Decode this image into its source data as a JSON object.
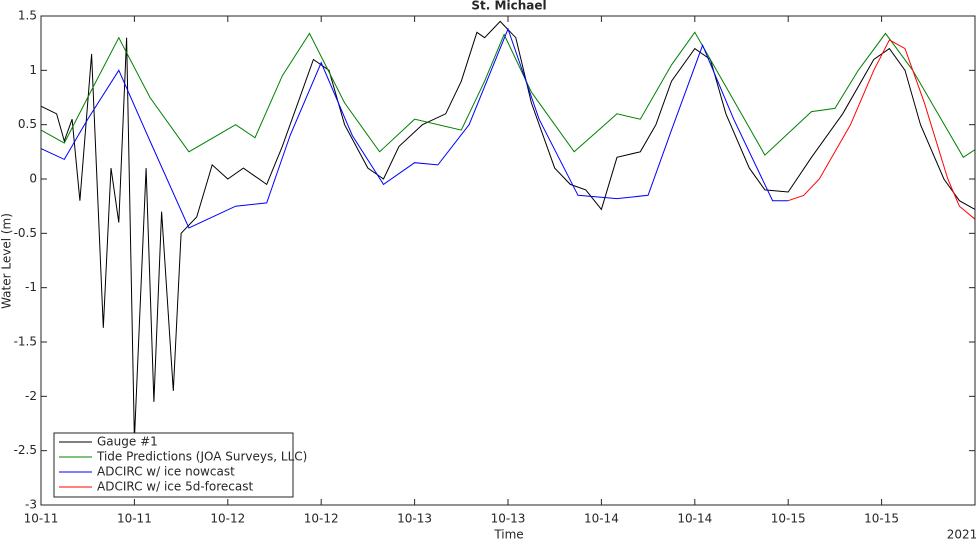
{
  "chart_data": {
    "type": "line",
    "title": "St. Michael",
    "x_label": "Time",
    "y_label": "Water Level (m)",
    "annotation": "2021",
    "xlim": [
      0,
      120
    ],
    "ylim": [
      -3,
      1.5
    ],
    "xticks": [
      {
        "value": 0,
        "label": "10-11"
      },
      {
        "value": 12,
        "label": "10-11"
      },
      {
        "value": 24,
        "label": "10-12"
      },
      {
        "value": 36,
        "label": "10-12"
      },
      {
        "value": 48,
        "label": "10-13"
      },
      {
        "value": 60,
        "label": "10-13"
      },
      {
        "value": 72,
        "label": "10-14"
      },
      {
        "value": 84,
        "label": "10-14"
      },
      {
        "value": 96,
        "label": "10-15"
      },
      {
        "value": 108,
        "label": "10-15"
      }
    ],
    "yticks": [
      1.5,
      1,
      0.5,
      0,
      -0.5,
      -1,
      -1.5,
      -2,
      -2.5,
      -3
    ],
    "grid": false,
    "legend": "lower-left",
    "series": [
      {
        "name": "Gauge #1",
        "color": "#000000",
        "x": [
          0,
          2,
          3,
          4,
          5,
          6.5,
          8,
          9,
          10,
          11,
          12,
          13.5,
          14.5,
          15.5,
          17,
          18,
          20,
          22,
          24,
          26,
          29,
          31,
          33,
          35,
          37,
          39,
          42,
          44,
          46,
          49,
          52,
          54,
          56,
          57,
          59,
          61,
          63,
          66,
          68,
          70,
          72,
          74,
          77,
          79,
          81,
          84,
          86,
          88,
          91,
          93,
          96,
          99,
          103,
          107,
          109,
          111,
          113,
          116,
          118,
          120
        ],
        "values": [
          0.67,
          0.6,
          0.35,
          0.55,
          -0.2,
          1.15,
          -1.37,
          0.1,
          -0.4,
          1.3,
          -2.4,
          0.1,
          -2.05,
          -0.3,
          -1.95,
          -0.5,
          -0.35,
          0.13,
          0.0,
          0.1,
          -0.05,
          0.3,
          0.7,
          1.1,
          1.0,
          0.5,
          0.1,
          0.0,
          0.3,
          0.5,
          0.6,
          0.9,
          1.35,
          1.3,
          1.45,
          1.3,
          0.7,
          0.1,
          -0.05,
          -0.1,
          -0.28,
          0.2,
          0.25,
          0.5,
          0.9,
          1.2,
          1.1,
          0.6,
          0.1,
          -0.1,
          -0.12,
          0.2,
          0.6,
          1.1,
          1.2,
          1.0,
          0.5,
          0.0,
          -0.2,
          -0.28
        ]
      },
      {
        "name": "Tide Predictions (JOA Surveys, LLC)",
        "color": "#008000",
        "x": [
          0,
          3,
          6,
          10,
          14,
          19,
          25,
          27.5,
          31,
          34.5,
          39,
          43.5,
          48,
          54,
          57,
          59.5,
          63,
          68.5,
          74,
          77,
          81,
          84,
          88,
          93,
          99,
          102,
          105,
          108.5,
          112,
          118.5,
          120
        ],
        "values": [
          0.45,
          0.33,
          0.75,
          1.3,
          0.75,
          0.25,
          0.5,
          0.38,
          0.95,
          1.34,
          0.7,
          0.25,
          0.55,
          0.45,
          0.9,
          1.33,
          0.8,
          0.25,
          0.6,
          0.55,
          1.05,
          1.35,
          0.85,
          0.22,
          0.62,
          0.65,
          1.0,
          1.34,
          1.0,
          0.2,
          0.27
        ]
      },
      {
        "name": "ADCIRC w/ ice nowcast",
        "color": "#0000ff",
        "x": [
          0,
          3,
          6,
          10,
          14,
          19,
          25,
          29,
          32,
          36,
          40,
          44,
          48,
          51,
          55,
          60,
          64,
          69,
          74,
          78,
          81,
          85,
          89,
          94,
          96
        ],
        "values": [
          0.28,
          0.18,
          0.55,
          1.0,
          0.35,
          -0.45,
          -0.25,
          -0.22,
          0.4,
          1.07,
          0.4,
          -0.05,
          0.15,
          0.13,
          0.5,
          1.38,
          0.55,
          -0.15,
          -0.18,
          -0.15,
          0.45,
          1.23,
          0.55,
          -0.2,
          -0.2
        ]
      },
      {
        "name": "ADCIRC w/ ice 5d-forecast",
        "color": "#ff0000",
        "x": [
          96,
          98,
          100,
          104,
          107,
          109,
          111,
          113.5,
          116.5,
          118,
          120
        ],
        "values": [
          -0.2,
          -0.15,
          0.0,
          0.5,
          1.0,
          1.28,
          1.2,
          0.7,
          0.0,
          -0.25,
          -0.37
        ]
      }
    ]
  }
}
